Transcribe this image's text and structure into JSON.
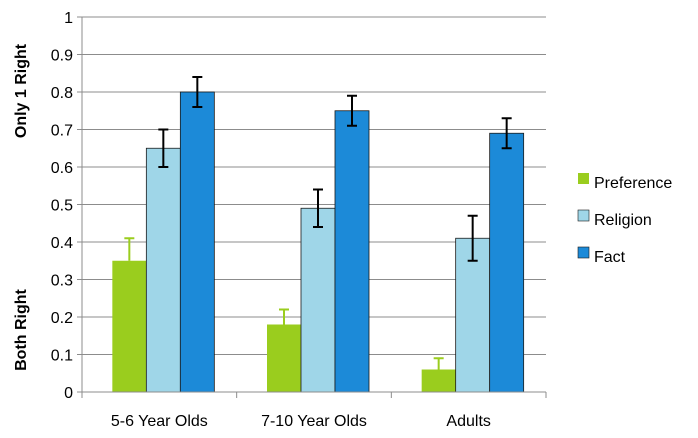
{
  "chart_data": {
    "type": "bar",
    "title": "",
    "ylabel_top": "Only 1 Right",
    "ylabel_bottom": "Both Right",
    "xlabel": "",
    "categories": [
      "5-6 Year Olds",
      "7-10 Year Olds",
      "Adults"
    ],
    "series": [
      {
        "name": "Preference",
        "color": "#9ACD1E",
        "values": [
          0.35,
          0.18,
          0.06
        ],
        "error_upper": [
          0.06,
          0.04,
          0.03
        ],
        "error_lower": [
          0,
          0,
          0
        ]
      },
      {
        "name": "Religion",
        "color": "#9FD6E8",
        "values": [
          0.65,
          0.49,
          0.41
        ],
        "error_upper": [
          0.05,
          0.05,
          0.06
        ],
        "error_lower": [
          0.05,
          0.05,
          0.06
        ]
      },
      {
        "name": "Fact",
        "color": "#1C8AD8",
        "values": [
          0.8,
          0.75,
          0.69
        ],
        "error_upper": [
          0.04,
          0.04,
          0.04
        ],
        "error_lower": [
          0.04,
          0.04,
          0.04
        ]
      }
    ],
    "ylim": [
      0,
      1
    ],
    "yticks": [
      "0",
      "0.1",
      "0.2",
      "0.3",
      "0.4",
      "0.5",
      "0.6",
      "0.7",
      "0.8",
      "0.9",
      "1"
    ],
    "grid": true,
    "legend_position": "right"
  }
}
